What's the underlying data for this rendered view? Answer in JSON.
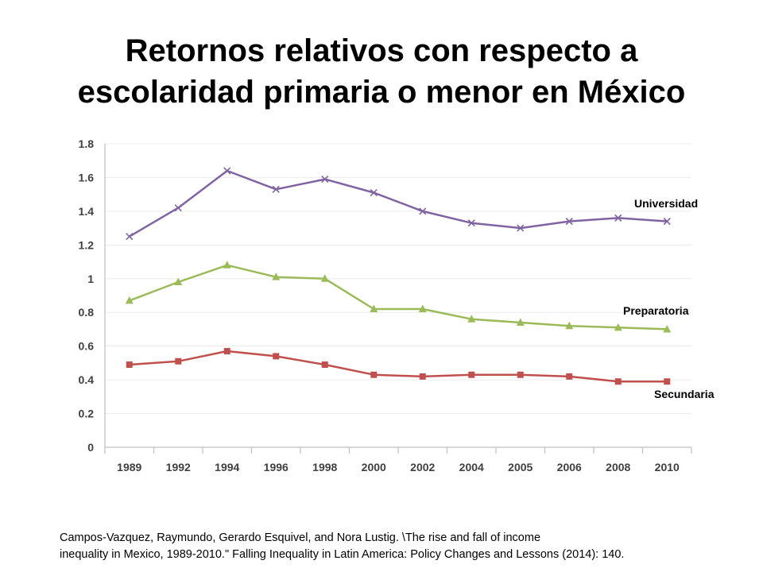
{
  "title": {
    "line1": "Retornos relativos con respecto a",
    "line2": "escolaridad primaria o menor en México"
  },
  "citation": {
    "line1": "Campos-Vazquez, Raymundo, Gerardo Esquivel, and Nora Lustig. \\The rise and fall of income",
    "line2": "inequality in Mexico, 1989-2010.\" Falling Inequality in Latin America: Policy Changes and Lessons (2014): 140."
  },
  "chart_data": {
    "type": "line",
    "categories": [
      "1989",
      "1992",
      "1994",
      "1996",
      "1998",
      "2000",
      "2002",
      "2004",
      "2005",
      "2006",
      "2008",
      "2010"
    ],
    "yticks": [
      "0",
      "0.2",
      "0.4",
      "0.6",
      "0.8",
      "1",
      "1.2",
      "1.4",
      "1.6",
      "1.8"
    ],
    "ylim": [
      0,
      1.8
    ],
    "grid": true,
    "series": [
      {
        "name": "Universidad",
        "color": "#8064a2",
        "marker": "x",
        "values": [
          1.25,
          1.42,
          1.64,
          1.53,
          1.59,
          1.51,
          1.4,
          1.33,
          1.3,
          1.34,
          1.36,
          1.34
        ]
      },
      {
        "name": "Preparatoria",
        "color": "#9bbb59",
        "marker": "triangle",
        "values": [
          0.87,
          0.98,
          1.08,
          1.01,
          1.0,
          0.82,
          0.82,
          0.76,
          0.74,
          0.72,
          0.71,
          0.7
        ]
      },
      {
        "name": "Secundaria",
        "color": "#c0504d",
        "marker": "square",
        "values": [
          0.49,
          0.51,
          0.57,
          0.54,
          0.49,
          0.43,
          0.42,
          0.43,
          0.43,
          0.42,
          0.39,
          0.39
        ]
      }
    ]
  }
}
